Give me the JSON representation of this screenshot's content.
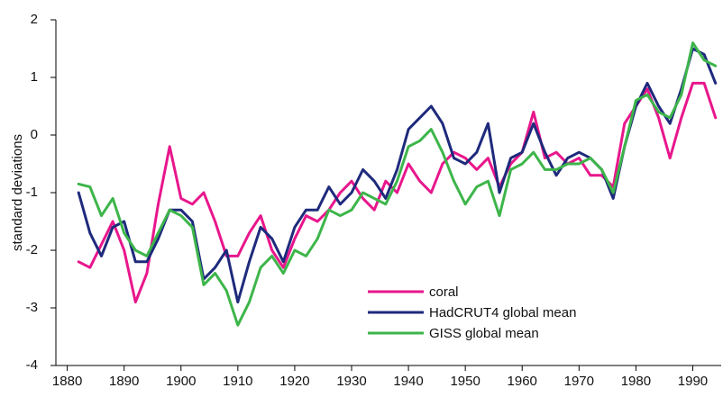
{
  "chart_data": {
    "type": "line",
    "ylabel": "standard deviations",
    "x": [
      1882,
      1884,
      1886,
      1888,
      1890,
      1892,
      1894,
      1896,
      1898,
      1900,
      1902,
      1904,
      1906,
      1908,
      1910,
      1912,
      1914,
      1916,
      1918,
      1920,
      1922,
      1924,
      1926,
      1928,
      1930,
      1932,
      1934,
      1936,
      1938,
      1940,
      1942,
      1944,
      1946,
      1948,
      1950,
      1952,
      1954,
      1956,
      1958,
      1960,
      1962,
      1964,
      1966,
      1968,
      1970,
      1972,
      1974,
      1976,
      1978,
      1980,
      1982,
      1984,
      1986,
      1988,
      1990,
      1992,
      1994
    ],
    "series": [
      {
        "name": "coral",
        "color": "#e8168c",
        "values": [
          -2.2,
          -2.3,
          -1.9,
          -1.5,
          -2.0,
          -2.9,
          -2.4,
          -1.2,
          -0.2,
          -1.1,
          -1.2,
          -1.0,
          -1.5,
          -2.1,
          -2.1,
          -1.7,
          -1.4,
          -2.0,
          -2.3,
          -1.8,
          -1.4,
          -1.5,
          -1.3,
          -1.0,
          -0.8,
          -1.1,
          -1.3,
          -0.8,
          -1.0,
          -0.5,
          -0.8,
          -1.0,
          -0.5,
          -0.3,
          -0.4,
          -0.6,
          -0.4,
          -0.9,
          -0.5,
          -0.3,
          0.4,
          -0.4,
          -0.3,
          -0.5,
          -0.4,
          -0.7,
          -0.7,
          -0.9,
          0.2,
          0.5,
          0.8,
          0.3,
          -0.4,
          0.3,
          0.9,
          0.9,
          0.3
        ]
      },
      {
        "name": "HadCRUT4 global mean",
        "color": "#1e2a7c",
        "values": [
          -1.0,
          -1.7,
          -2.1,
          -1.6,
          -1.5,
          -2.2,
          -2.2,
          -1.8,
          -1.3,
          -1.3,
          -1.5,
          -2.5,
          -2.3,
          -2.0,
          -2.9,
          -2.2,
          -1.6,
          -1.8,
          -2.2,
          -1.6,
          -1.3,
          -1.3,
          -0.9,
          -1.2,
          -1.0,
          -0.6,
          -0.8,
          -1.1,
          -0.6,
          0.1,
          0.3,
          0.5,
          0.2,
          -0.4,
          -0.5,
          -0.3,
          0.2,
          -1.0,
          -0.4,
          -0.3,
          0.2,
          -0.3,
          -0.7,
          -0.4,
          -0.3,
          -0.4,
          -0.6,
          -1.1,
          -0.2,
          0.5,
          0.9,
          0.5,
          0.2,
          0.8,
          1.5,
          1.4,
          0.9
        ]
      },
      {
        "name": "GISS global mean",
        "color": "#3db54a",
        "values": [
          -0.85,
          -0.9,
          -1.4,
          -1.1,
          -1.7,
          -2.0,
          -2.1,
          -1.7,
          -1.3,
          -1.4,
          -1.6,
          -2.6,
          -2.4,
          -2.7,
          -3.3,
          -2.9,
          -2.3,
          -2.1,
          -2.4,
          -2.0,
          -2.1,
          -1.8,
          -1.3,
          -1.4,
          -1.3,
          -1.0,
          -1.1,
          -1.2,
          -0.8,
          -0.2,
          -0.1,
          0.1,
          -0.3,
          -0.8,
          -1.2,
          -0.9,
          -0.8,
          -1.4,
          -0.6,
          -0.5,
          -0.3,
          -0.6,
          -0.6,
          -0.5,
          -0.5,
          -0.4,
          -0.6,
          -1.0,
          -0.2,
          0.6,
          0.7,
          0.4,
          0.3,
          0.7,
          1.6,
          1.3,
          1.2
        ]
      }
    ],
    "xlim": [
      1878,
      1995
    ],
    "xticks": [
      1880,
      1890,
      1900,
      1910,
      1920,
      1930,
      1940,
      1950,
      1960,
      1970,
      1980,
      1990
    ],
    "ylim": [
      -4,
      2
    ],
    "yticks": [
      -4,
      -3,
      -2,
      -1,
      0,
      1,
      2
    ],
    "grid": false,
    "legend": "lower center"
  }
}
